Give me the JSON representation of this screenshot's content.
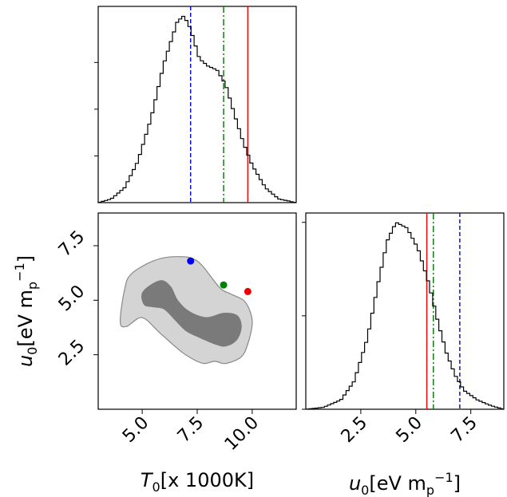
{
  "chart_data": [
    {
      "type": "line",
      "panel": "T0 marginal histogram (top-left)",
      "xlim": [
        3.0,
        12.0
      ],
      "x": [
        3.0,
        3.6,
        4.2,
        4.8,
        5.4,
        6.0,
        6.6,
        6.9,
        7.2,
        7.6,
        8.0,
        8.4,
        8.8,
        9.2,
        9.6,
        10.0,
        10.6,
        11.2,
        12.0
      ],
      "values": [
        0.0,
        0.02,
        0.08,
        0.22,
        0.45,
        0.75,
        0.97,
        1.0,
        0.93,
        0.77,
        0.73,
        0.71,
        0.63,
        0.47,
        0.32,
        0.2,
        0.08,
        0.02,
        0.0
      ],
      "ylim": [
        0,
        1.05
      ],
      "yticks": [
        0.25,
        0.5,
        0.75
      ],
      "markers": [
        {
          "x": 7.2,
          "color": "#0000cc",
          "style": "dashed"
        },
        {
          "x": 8.7,
          "color": "#007700",
          "style": "dashdot"
        },
        {
          "x": 9.8,
          "color": "#ee0000",
          "style": "solid"
        }
      ]
    },
    {
      "type": "scatter",
      "panel": "T0 vs u0 contours (bottom-left)",
      "xlim": [
        3.0,
        12.0
      ],
      "ylim": [
        0.0,
        9.0
      ],
      "xticks": [
        "5.0",
        "7.5",
        "10.0"
      ],
      "yticks": [
        "2.5",
        "5.0",
        "7.5"
      ],
      "xlabel": "T_0[x 1000K]",
      "ylabel": "u_0[eV m_p^-1]",
      "contours": [
        {
          "level": "outer",
          "color": "#d4d4d4",
          "edge": "#888888",
          "x": [
            4.2,
            4.0,
            4.3,
            5.0,
            5.8,
            6.7,
            7.3,
            7.8,
            8.3,
            8.8,
            9.5,
            9.8,
            10.0,
            9.9,
            9.6,
            9.0,
            8.5,
            7.5,
            6.5,
            5.5,
            4.5
          ],
          "y": [
            5.5,
            4.0,
            3.8,
            4.2,
            3.5,
            2.7,
            2.3,
            2.1,
            2.2,
            2.1,
            2.4,
            3.0,
            3.9,
            4.5,
            5.0,
            5.3,
            5.6,
            6.8,
            7.0,
            6.8,
            6.2
          ]
        },
        {
          "level": "inner",
          "color": "#7a7a7a",
          "edge": "#7a7a7a",
          "x": [
            5.1,
            5.5,
            6.0,
            6.5,
            7.0,
            7.6,
            8.3,
            8.8,
            9.3,
            9.5,
            9.3,
            8.7,
            7.9,
            7.1,
            6.6,
            6.3,
            5.9,
            5.4,
            5.0
          ],
          "y": [
            4.8,
            4.7,
            4.6,
            4.1,
            3.6,
            3.3,
            3.0,
            2.9,
            3.2,
            3.8,
            4.3,
            4.4,
            4.2,
            4.5,
            5.0,
            5.6,
            5.9,
            5.7,
            5.3
          ]
        }
      ],
      "points": [
        {
          "x": 7.2,
          "y": 6.8,
          "color": "#0000ee"
        },
        {
          "x": 8.7,
          "y": 5.7,
          "color": "#008000"
        },
        {
          "x": 9.8,
          "y": 5.4,
          "color": "#ee0000"
        }
      ]
    },
    {
      "type": "line",
      "panel": "u0 marginal histogram (bottom-right)",
      "xlim": [
        0.0,
        9.0
      ],
      "x": [
        0.0,
        0.8,
        1.6,
        2.2,
        2.8,
        3.3,
        3.7,
        4.1,
        4.6,
        5.1,
        5.6,
        6.0,
        6.4,
        6.8,
        7.2,
        7.8,
        8.4,
        9.0
      ],
      "values": [
        0.0,
        0.01,
        0.05,
        0.15,
        0.38,
        0.68,
        0.9,
        1.0,
        0.97,
        0.86,
        0.67,
        0.47,
        0.3,
        0.18,
        0.1,
        0.05,
        0.02,
        0.0
      ],
      "ylim": [
        0,
        1.05
      ],
      "yticks": [
        0.0,
        0.5,
        1.0
      ],
      "xticks": [
        "2.5",
        "5.0",
        "7.5"
      ],
      "xlabel": "u_0[eV m_p^-1]",
      "markers": [
        {
          "x": 5.5,
          "color": "#ee0000",
          "style": "solid"
        },
        {
          "x": 5.8,
          "color": "#007700",
          "style": "dashdot"
        },
        {
          "x": 7.0,
          "color": "#0000cc",
          "style": "dashed"
        }
      ]
    }
  ],
  "labels": {
    "x_left": {
      "sym": "T",
      "sub": "0",
      "rest": "[x 1000K]"
    },
    "x_right": {
      "sym": "u",
      "sub": "0",
      "open": "[eV m",
      "sub2": "p",
      "sup": "−1",
      "close": "]"
    },
    "y_left": {
      "sym": "u",
      "sub": "0",
      "open": "[eV m",
      "sub2": "p",
      "sup": "−1",
      "close": "]"
    }
  }
}
